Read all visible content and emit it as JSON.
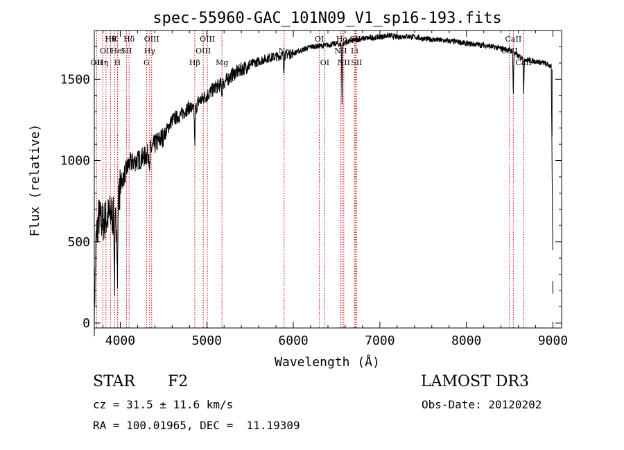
{
  "chart_data": {
    "type": "line",
    "title": "spec-55960-GAC_101N09_V1_sp16-193.fits",
    "xlabel": "Wavelength (Å)",
    "ylabel": "Flux (relative)",
    "xlim": [
      3700,
      9100
    ],
    "ylim": [
      -30,
      1800
    ],
    "xticks": [
      4000,
      5000,
      6000,
      7000,
      8000,
      9000
    ],
    "yticks": [
      0,
      500,
      1000,
      1500
    ],
    "spectrum_envelope": {
      "x": [
        3700,
        3720,
        3750,
        3800,
        3850,
        3900,
        3950,
        4000,
        4100,
        4200,
        4300,
        4400,
        4500,
        4600,
        4700,
        4800,
        4860,
        4900,
        5000,
        5100,
        5200,
        5300,
        5400,
        5500,
        5600,
        5700,
        5800,
        5900,
        6000,
        6100,
        6200,
        6300,
        6400,
        6500,
        6560,
        6600,
        6700,
        6800,
        6900,
        7000,
        7100,
        7200,
        7300,
        7400,
        7500,
        7600,
        7700,
        7800,
        7900,
        8000,
        8100,
        8200,
        8300,
        8400,
        8500,
        8542,
        8600,
        8662,
        8700,
        8800,
        8900,
        8980,
        9000
      ],
      "y": [
        50,
        500,
        650,
        620,
        650,
        680,
        600,
        850,
        980,
        1000,
        1030,
        1100,
        1150,
        1250,
        1280,
        1330,
        1300,
        1360,
        1400,
        1450,
        1480,
        1530,
        1560,
        1590,
        1610,
        1630,
        1640,
        1650,
        1660,
        1680,
        1700,
        1705,
        1710,
        1720,
        1710,
        1725,
        1740,
        1750,
        1755,
        1760,
        1770,
        1760,
        1765,
        1760,
        1750,
        1745,
        1740,
        1735,
        1730,
        1720,
        1715,
        1710,
        1700,
        1690,
        1680,
        1670,
        1640,
        1630,
        1620,
        1610,
        1600,
        1580,
        300
      ]
    },
    "absorption_features": [
      {
        "x": 3934,
        "y": 220
      },
      {
        "x": 3968,
        "y": 260
      },
      {
        "x": 4340,
        "y": 900
      },
      {
        "x": 4861,
        "y": 1080
      },
      {
        "x": 5175,
        "y": 1400
      },
      {
        "x": 5890,
        "y": 1560
      },
      {
        "x": 6563,
        "y": 1330
      },
      {
        "x": 8542,
        "y": 1400
      },
      {
        "x": 8662,
        "y": 1410
      }
    ],
    "line_markers": [
      {
        "wavelength": 3727,
        "row": 2,
        "label": "OII"
      },
      {
        "wavelength": 3798,
        "row": 2,
        "label": "Hη"
      },
      {
        "wavelength": 3835,
        "row": 1,
        "label": "OII"
      },
      {
        "wavelength": 3889,
        "row": 0,
        "label": "Hθ"
      },
      {
        "wavelength": 3933,
        "row": 0,
        "label": "K"
      },
      {
        "wavelength": 3968,
        "row": 2,
        "label": "H"
      },
      {
        "wavelength": 3970,
        "row": 1,
        "label": "HeI"
      },
      {
        "wavelength": 4072,
        "row": 1,
        "label": "SII"
      },
      {
        "wavelength": 4102,
        "row": 0,
        "label": "Hδ"
      },
      {
        "wavelength": 4304,
        "row": 2,
        "label": "G"
      },
      {
        "wavelength": 4340,
        "row": 1,
        "label": "Hγ"
      },
      {
        "wavelength": 4363,
        "row": 0,
        "label": "OIII"
      },
      {
        "wavelength": 4861,
        "row": 2,
        "label": "Hβ"
      },
      {
        "wavelength": 4959,
        "row": 1,
        "label": "OIII"
      },
      {
        "wavelength": 5007,
        "row": 0,
        "label": "OIII"
      },
      {
        "wavelength": 5175,
        "row": 2,
        "label": "Mg"
      },
      {
        "wavelength": 5894,
        "row": 1,
        "label": "Na"
      },
      {
        "wavelength": 6300,
        "row": 0,
        "label": "OI"
      },
      {
        "wavelength": 6363,
        "row": 2,
        "label": "OI"
      },
      {
        "wavelength": 6548,
        "row": 1,
        "label": "NII"
      },
      {
        "wavelength": 6563,
        "row": 0,
        "label": "Hα"
      },
      {
        "wavelength": 6583,
        "row": 2,
        "label": "NII"
      },
      {
        "wavelength": 6707,
        "row": 1,
        "label": "Li"
      },
      {
        "wavelength": 6716,
        "row": 0,
        "label": "SII"
      },
      {
        "wavelength": 6731,
        "row": 2,
        "label": "SII"
      },
      {
        "wavelength": 8498,
        "row": 1,
        "label": "CaII"
      },
      {
        "wavelength": 8542,
        "row": 0,
        "label": "CaII"
      },
      {
        "wavelength": 8662,
        "row": 2,
        "label": "CaII"
      }
    ]
  },
  "info": {
    "object_class": "STAR",
    "subclass": "F2",
    "survey": "LAMOST DR3",
    "redshift": "cz = 31.5 ± 11.6 km/s",
    "obs_date": "Obs-Date: 20120202",
    "coords": "RA = 100.01965, DEC =  11.19309"
  }
}
